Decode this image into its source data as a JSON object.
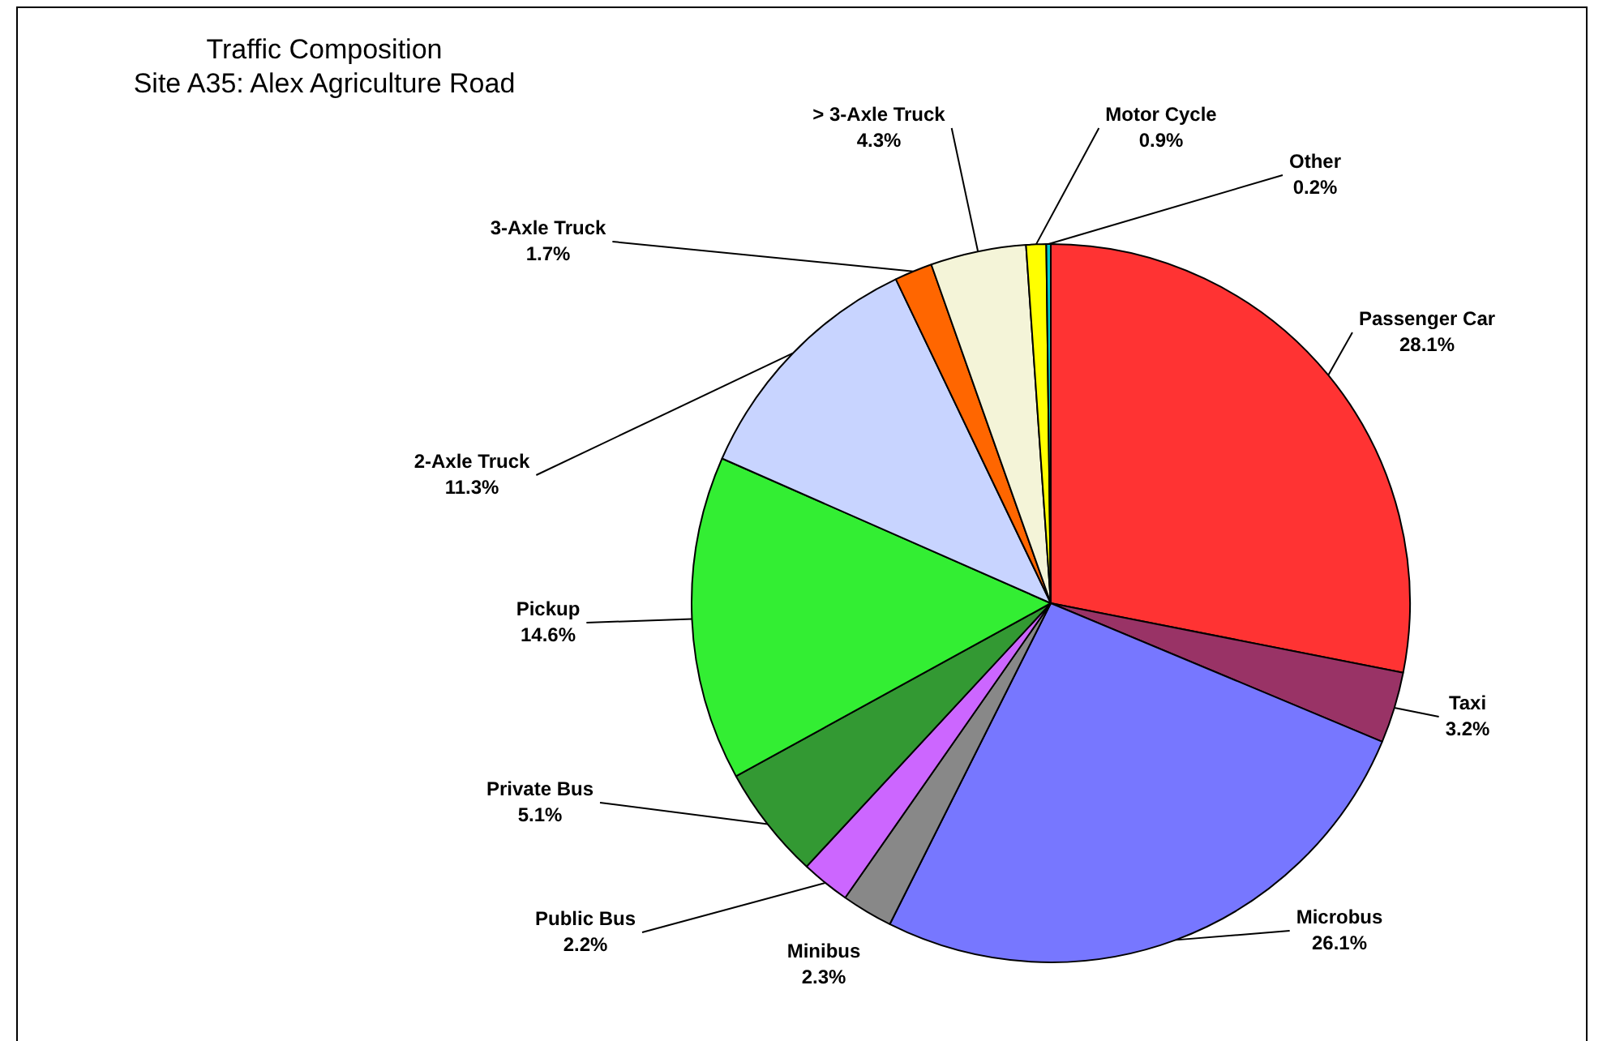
{
  "chart_data": {
    "type": "pie",
    "title": "Traffic Composition",
    "subtitle": "Site A35: Alex Agriculture Road",
    "categories": [
      "Passenger Car",
      "Taxi",
      "Microbus",
      "Minibus",
      "Public Bus",
      "Private Bus",
      "Pickup",
      "2-Axle Truck",
      "3-Axle Truck",
      "> 3-Axle Truck",
      "Motor Cycle",
      "Other"
    ],
    "values": [
      28.1,
      3.2,
      26.1,
      2.3,
      2.2,
      5.1,
      14.6,
      11.3,
      1.7,
      4.3,
      0.9,
      0.2
    ],
    "value_labels": [
      "28.1%",
      "3.2%",
      "26.1%",
      "2.3%",
      "2.2%",
      "5.1%",
      "14.6%",
      "11.3%",
      "1.7%",
      "4.3%",
      "0.9%",
      "0.2%"
    ],
    "colors": [
      "#ff3333",
      "#993366",
      "#7777ff",
      "#888888",
      "#cc66ff",
      "#339933",
      "#33ee33",
      "#c8d4ff",
      "#ff6600",
      "#f4f4d8",
      "#ffff00",
      "#00cccc"
    ],
    "legend": false
  }
}
